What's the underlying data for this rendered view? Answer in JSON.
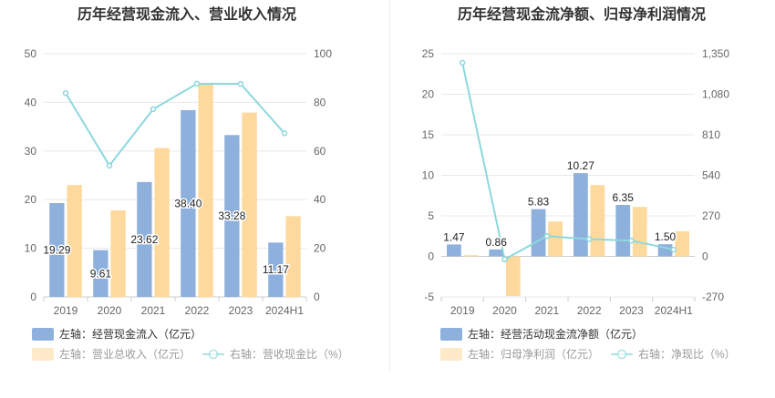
{
  "chart_data": [
    {
      "type": "bar",
      "title": "历年经营现金流入、营业收入情况",
      "categories": [
        "2019",
        "2020",
        "2021",
        "2022",
        "2023",
        "2024H1"
      ],
      "left_axis": {
        "ylim": [
          0,
          50
        ],
        "ticks": [
          "0",
          "10",
          "20",
          "30",
          "40",
          "50"
        ]
      },
      "right_axis": {
        "ylim": [
          0,
          100
        ],
        "ticks": [
          "0",
          "20",
          "40",
          "60",
          "80",
          "100"
        ]
      },
      "series": [
        {
          "name": "左轴：经营现金流入（亿元）",
          "kind": "bar",
          "axis": "left",
          "color": "#8eb0dc",
          "values": [
            19.29,
            9.61,
            23.62,
            38.4,
            33.28,
            11.17
          ],
          "labels": [
            "19.29",
            "9.61",
            "23.62",
            "38.40",
            "33.28",
            "11.17"
          ]
        },
        {
          "name": "左轴：营业总收入（亿元）",
          "kind": "bar",
          "axis": "left",
          "color": "#fdd99d",
          "values": [
            23.0,
            17.8,
            30.6,
            43.8,
            37.9,
            16.6
          ]
        },
        {
          "name": "右轴：营收现金比（%）",
          "kind": "line",
          "axis": "right",
          "color": "#8dd8dd",
          "values": [
            83.8,
            54.0,
            77.2,
            87.7,
            87.6,
            67.3
          ]
        }
      ]
    },
    {
      "type": "bar",
      "title": "历年经营现金流净额、归母净利润情况",
      "categories": [
        "2019",
        "2020",
        "2021",
        "2022",
        "2023",
        "2024H1"
      ],
      "left_axis": {
        "ylim": [
          -5,
          25
        ],
        "ticks": [
          "-5",
          "0",
          "5",
          "10",
          "15",
          "20",
          "25"
        ]
      },
      "right_axis": {
        "ylim": [
          -270,
          1350
        ],
        "ticks": [
          "-270",
          "0",
          "270",
          "540",
          "810",
          "1,080",
          "1,350"
        ]
      },
      "series": [
        {
          "name": "左轴：经营活动现金流净额（亿元）",
          "kind": "bar",
          "axis": "left",
          "color": "#8eb0dc",
          "values": [
            1.47,
            0.86,
            5.83,
            10.27,
            6.35,
            1.5
          ],
          "labels": [
            "1.47",
            "0.86",
            "5.83",
            "10.27",
            "6.35",
            "1.50"
          ]
        },
        {
          "name": "左轴：归母净利润（亿元）",
          "kind": "bar",
          "axis": "left",
          "color": "#fdd99d",
          "values": [
            0.15,
            -4.9,
            4.3,
            8.8,
            6.1,
            3.1
          ]
        },
        {
          "name": "右轴：净现比（%）",
          "kind": "line",
          "axis": "right",
          "color": "#8dd8dd",
          "values": [
            1290,
            -20,
            135,
            115,
            105,
            45
          ]
        }
      ]
    }
  ]
}
